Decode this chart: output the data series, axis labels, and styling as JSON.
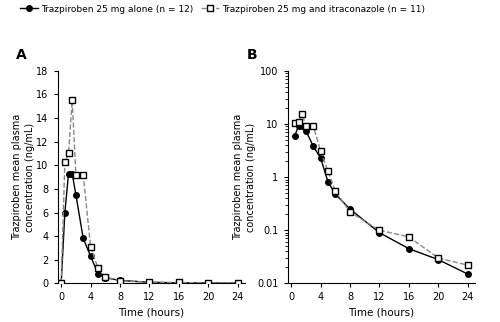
{
  "time_alone": [
    0,
    0.5,
    1,
    1.5,
    2,
    3,
    4,
    5,
    6,
    8,
    12,
    16,
    20,
    24
  ],
  "conc_alone": [
    0.0,
    6.0,
    9.3,
    9.3,
    7.5,
    3.8,
    2.3,
    0.82,
    0.48,
    0.25,
    0.09,
    0.045,
    0.028,
    0.015
  ],
  "time_itra": [
    0,
    0.5,
    1,
    1.5,
    2,
    3,
    4,
    5,
    6,
    8,
    12,
    16,
    20,
    24
  ],
  "conc_itra": [
    0.0,
    10.3,
    11.0,
    15.5,
    9.2,
    9.2,
    3.1,
    1.3,
    0.55,
    0.22,
    0.1,
    0.075,
    0.03,
    0.022
  ],
  "time_alone_log": [
    0.5,
    1,
    1.5,
    2,
    3,
    4,
    5,
    6,
    8,
    12,
    16,
    20,
    24
  ],
  "conc_alone_log": [
    6.0,
    9.3,
    9.3,
    7.5,
    3.8,
    2.3,
    0.82,
    0.48,
    0.25,
    0.09,
    0.045,
    0.028,
    0.015
  ],
  "time_itra_log": [
    0.5,
    1,
    1.5,
    2,
    3,
    4,
    5,
    6,
    8,
    12,
    16,
    20,
    24
  ],
  "conc_itra_log": [
    10.3,
    11.0,
    15.5,
    9.2,
    9.2,
    3.1,
    1.3,
    0.55,
    0.22,
    0.1,
    0.075,
    0.03,
    0.022
  ],
  "label_alone": "Trazpiroben 25 mg alone (n = 12)",
  "label_itra": "Trazpiroben 25 mg and itraconazole (n = 11)",
  "ylabel": "Trazpiroben mean plasma\nconcentration (ng/mL)",
  "xlabel": "Time (hours)",
  "panel_A": "A",
  "panel_B": "B",
  "ylim_linear": [
    0,
    18
  ],
  "yticks_linear": [
    0,
    2,
    4,
    6,
    8,
    10,
    12,
    14,
    16,
    18
  ],
  "xlim": [
    -0.5,
    25
  ],
  "xticks": [
    0,
    4,
    8,
    12,
    16,
    20,
    24
  ],
  "ylim_log": [
    0.01,
    100
  ],
  "yticks_log": [
    0.01,
    0.1,
    1,
    10,
    100
  ],
  "color_alone": "#000000",
  "color_itra": "#888888",
  "bg_color": "#ffffff"
}
